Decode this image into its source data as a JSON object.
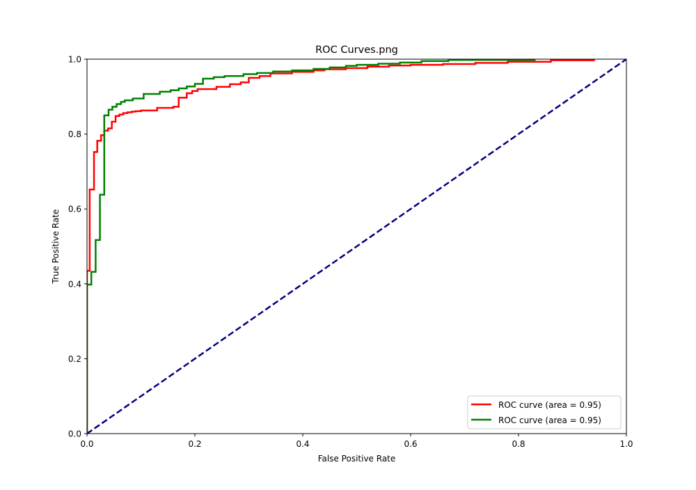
{
  "chart_data": {
    "type": "line",
    "title": "ROC Curves.png",
    "xlabel": "False Positive Rate",
    "ylabel": "True Positive Rate",
    "xlim": [
      0.0,
      1.0
    ],
    "ylim": [
      0.0,
      1.0
    ],
    "x_ticks": [
      "0.0",
      "0.2",
      "0.4",
      "0.6",
      "0.8",
      "1.0"
    ],
    "y_ticks": [
      "0.0",
      "0.2",
      "0.4",
      "0.6",
      "0.8",
      "1.0"
    ],
    "grid": false,
    "legend_position": "lower right",
    "series": [
      {
        "name": "ROC curve (area = 0.95)",
        "color": "#ff0000",
        "style": "solid",
        "x": [
          0.0,
          0.0,
          0.005,
          0.005,
          0.013,
          0.013,
          0.019,
          0.019,
          0.026,
          0.026,
          0.032,
          0.032,
          0.039,
          0.039,
          0.046,
          0.046,
          0.053,
          0.053,
          0.06,
          0.06,
          0.067,
          0.067,
          0.075,
          0.075,
          0.083,
          0.083,
          0.09,
          0.09,
          0.1,
          0.1,
          0.13,
          0.13,
          0.16,
          0.16,
          0.17,
          0.17,
          0.185,
          0.185,
          0.195,
          0.195,
          0.205,
          0.205,
          0.24,
          0.24,
          0.265,
          0.265,
          0.285,
          0.285,
          0.3,
          0.3,
          0.32,
          0.32,
          0.34,
          0.34,
          0.38,
          0.38,
          0.42,
          0.42,
          0.44,
          0.44,
          0.48,
          0.48,
          0.52,
          0.52,
          0.56,
          0.56,
          0.6,
          0.6,
          0.66,
          0.66,
          0.72,
          0.72,
          0.78,
          0.78,
          0.86,
          0.86,
          0.94,
          0.94
        ],
        "y": [
          0.0,
          0.435,
          0.435,
          0.652,
          0.652,
          0.752,
          0.752,
          0.782,
          0.782,
          0.797,
          0.797,
          0.809,
          0.809,
          0.815,
          0.815,
          0.833,
          0.833,
          0.848,
          0.848,
          0.852,
          0.852,
          0.856,
          0.856,
          0.858,
          0.858,
          0.86,
          0.86,
          0.861,
          0.861,
          0.863,
          0.863,
          0.87,
          0.87,
          0.873,
          0.873,
          0.897,
          0.897,
          0.909,
          0.909,
          0.915,
          0.915,
          0.92,
          0.92,
          0.926,
          0.926,
          0.933,
          0.933,
          0.938,
          0.938,
          0.95,
          0.95,
          0.955,
          0.955,
          0.962,
          0.962,
          0.966,
          0.966,
          0.97,
          0.97,
          0.973,
          0.973,
          0.976,
          0.976,
          0.98,
          0.98,
          0.983,
          0.983,
          0.985,
          0.985,
          0.987,
          0.987,
          0.99,
          0.99,
          0.993,
          0.993,
          0.997,
          0.997,
          1.0
        ]
      },
      {
        "name": "ROC curve (area = 0.95)",
        "color": "#008000",
        "style": "solid",
        "x": [
          0.0,
          0.0,
          0.008,
          0.008,
          0.016,
          0.016,
          0.024,
          0.024,
          0.032,
          0.032,
          0.04,
          0.04,
          0.047,
          0.047,
          0.055,
          0.055,
          0.063,
          0.063,
          0.07,
          0.07,
          0.085,
          0.085,
          0.105,
          0.105,
          0.135,
          0.135,
          0.155,
          0.155,
          0.17,
          0.17,
          0.185,
          0.185,
          0.2,
          0.2,
          0.215,
          0.215,
          0.235,
          0.235,
          0.255,
          0.255,
          0.29,
          0.29,
          0.315,
          0.315,
          0.345,
          0.345,
          0.38,
          0.38,
          0.42,
          0.42,
          0.45,
          0.45,
          0.48,
          0.48,
          0.5,
          0.5,
          0.54,
          0.54,
          0.58,
          0.58,
          0.62,
          0.62,
          0.67,
          0.67,
          0.83,
          0.83
        ],
        "y": [
          0.0,
          0.398,
          0.398,
          0.432,
          0.432,
          0.517,
          0.517,
          0.638,
          0.638,
          0.85,
          0.85,
          0.865,
          0.865,
          0.873,
          0.873,
          0.88,
          0.88,
          0.886,
          0.886,
          0.89,
          0.89,
          0.895,
          0.895,
          0.907,
          0.907,
          0.913,
          0.913,
          0.917,
          0.917,
          0.922,
          0.922,
          0.927,
          0.927,
          0.934,
          0.934,
          0.948,
          0.948,
          0.952,
          0.952,
          0.955,
          0.955,
          0.96,
          0.96,
          0.963,
          0.963,
          0.967,
          0.967,
          0.97,
          0.97,
          0.974,
          0.974,
          0.978,
          0.978,
          0.982,
          0.982,
          0.985,
          0.985,
          0.988,
          0.988,
          0.991,
          0.991,
          0.995,
          0.995,
          0.998,
          0.998,
          1.0
        ]
      },
      {
        "color": "#000080",
        "style": "dashed",
        "x": [
          0.0,
          1.0
        ],
        "y": [
          0.0,
          1.0
        ]
      }
    ]
  }
}
